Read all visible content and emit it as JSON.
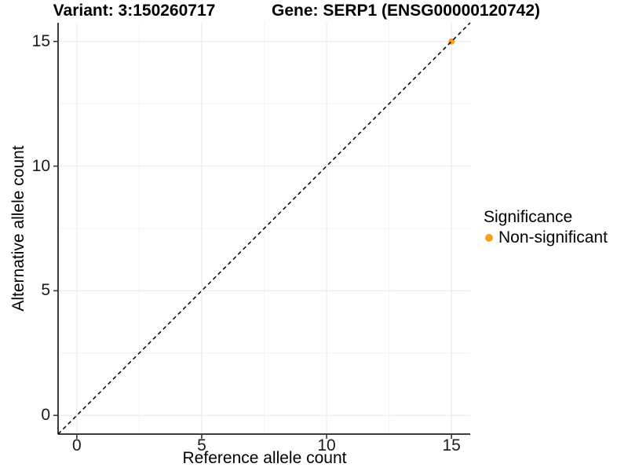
{
  "chart_data": {
    "type": "scatter",
    "title_left": "Variant: 3:150260717",
    "title_right": "Gene: SERP1 (ENSG00000120742)",
    "xlabel": "Reference allele count",
    "ylabel": "Alternative allele count",
    "xlim": [
      -0.75,
      15.75
    ],
    "ylim": [
      -0.75,
      15.75
    ],
    "x_ticks": [
      0,
      5,
      10,
      15
    ],
    "y_ticks": [
      0,
      5,
      10,
      15
    ],
    "minor_ticks": [
      2.5,
      7.5,
      12.5
    ],
    "grid": true,
    "reference_line": {
      "type": "abline",
      "slope": 1,
      "intercept": 0,
      "style": "dashed",
      "color": "#000000"
    },
    "series": [
      {
        "name": "Non-significant",
        "color": "#F9A11F",
        "points": [
          {
            "x": 15,
            "y": 15
          }
        ]
      }
    ],
    "legend": {
      "title": "Significance",
      "position": "right",
      "entries": [
        {
          "label": "Non-significant",
          "color": "#F9A11F"
        }
      ]
    },
    "colors": {
      "major_grid": "#E7E7E7",
      "minor_grid": "#F4F4F4",
      "axis_line": "#3c3c3c",
      "tick_mark": "#333333"
    }
  }
}
